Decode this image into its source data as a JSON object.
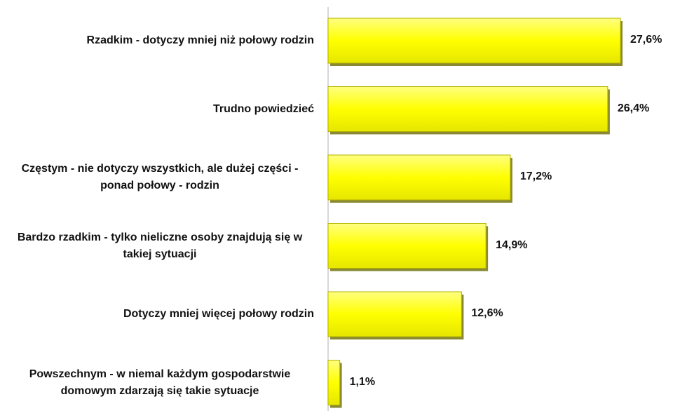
{
  "chart_data": {
    "type": "barh",
    "categories": [
      "Rzadkim - dotyczy mniej niż połowy rodzin",
      "Trudno powiedzieć",
      "Częstym - nie dotyczy wszystkich, ale dużej części - ponad połowy - rodzin",
      "Bardzo rzadkim - tylko nieliczne osoby znajdują się w takiej sytuacji",
      "Dotyczy mniej więcej połowy rodzin",
      "Powszechnym - w niemal każdym gospodarstwie domowym zdarzają się takie sytuacje"
    ],
    "values": [
      27.6,
      26.4,
      17.2,
      14.9,
      12.6,
      1.1
    ],
    "value_labels": [
      "27,6%",
      "26,4%",
      "17,2%",
      "14,9%",
      "12,6%",
      "1,1%"
    ],
    "color": "#ffff00"
  }
}
